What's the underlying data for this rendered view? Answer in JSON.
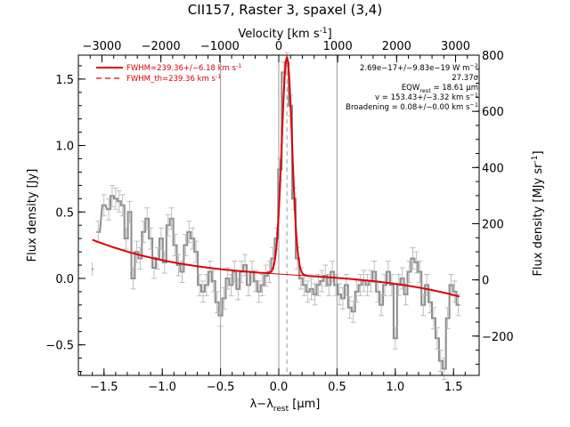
{
  "chart_data": {
    "type": "line",
    "title": "CII157, Raster 3, spaxel (3,4)",
    "xlabel": "λ−λ",
    "xlabel_sub": "rest",
    "xlabel_unit": " [μm]",
    "ylabel_left": "Flux density [Jy]",
    "ylabel_right": "Flux density [MJy sr",
    "ylabel_right_sup": "-1",
    "ylabel_right_end": "]",
    "top_axis_label": "Velocity [km s",
    "top_axis_label_sup": "-1",
    "top_axis_label_end": "]",
    "xlim": [
      -1.72,
      1.72
    ],
    "ylim": [
      -0.73,
      1.68
    ],
    "xticks": [
      -1.5,
      -1.0,
      -0.5,
      0.0,
      0.5,
      1.0,
      1.5
    ],
    "xtick_labels": [
      "−1.5",
      "−1.0",
      "−0.5",
      "0.0",
      "0.5",
      "1.0",
      "1.5"
    ],
    "yticks": [
      -0.5,
      0.0,
      0.5,
      1.0,
      1.5
    ],
    "ytick_labels": [
      "−0.5",
      "0.0",
      "0.5",
      "1.0",
      "1.5"
    ],
    "top_xlim": [
      -3400,
      3400
    ],
    "top_ticks": [
      -3000,
      -2000,
      -1000,
      0,
      1000,
      2000,
      3000
    ],
    "top_tick_labels": [
      "−3000",
      "−2000",
      "−1000",
      "0",
      "1000",
      "2000",
      "3000"
    ],
    "right_ylim": [
      -340,
      800
    ],
    "right_ticks": [
      -200,
      0,
      200,
      400,
      600,
      800
    ],
    "right_tick_labels": [
      "−200",
      "0",
      "200",
      "400",
      "600",
      "800"
    ],
    "vlines_solid": [
      -0.5,
      0.0,
      0.5
    ],
    "vline_dashed": 0.07,
    "colors": {
      "data": "#8c8c8c",
      "fit": "#e00000",
      "axes": "#000000",
      "vline": "#999999"
    },
    "legend": [
      {
        "label": "FWHM=239.36+/−6.18 km s",
        "sup": "-1",
        "style": "solid"
      },
      {
        "label": "FWHM_th=239.36 km s",
        "sup": "-1",
        "style": "dashed"
      }
    ],
    "annotations": [
      "2.69e−17+/−9.83e−19 W m",
      "27.37σ",
      "EQW",
      "v = 153.43+/−3.32 km s",
      "Broadening = 0.08+/−0.00 km s"
    ],
    "annotation_parts": {
      "flux_sup": "−2",
      "eqw_sub": "rest",
      "eqw_value": " = 18.61 μm",
      "v_sup": "−1",
      "broad_sup": "−1"
    },
    "series": [
      {
        "name": "data",
        "style": "step",
        "x": [
          -1.55,
          -1.5,
          -1.46,
          -1.43,
          -1.4,
          -1.37,
          -1.34,
          -1.31,
          -1.28,
          -1.25,
          -1.22,
          -1.19,
          -1.16,
          -1.13,
          -1.1,
          -1.07,
          -1.04,
          -1.01,
          -0.98,
          -0.95,
          -0.92,
          -0.89,
          -0.86,
          -0.83,
          -0.8,
          -0.77,
          -0.74,
          -0.71,
          -0.68,
          -0.65,
          -0.62,
          -0.59,
          -0.56,
          -0.53,
          -0.5,
          -0.47,
          -0.44,
          -0.41,
          -0.38,
          -0.35,
          -0.32,
          -0.29,
          -0.26,
          -0.23,
          -0.2,
          -0.17,
          -0.14,
          -0.11,
          -0.08,
          -0.05,
          -0.02,
          0.01,
          0.04,
          0.07,
          0.1,
          0.13,
          0.16,
          0.19,
          0.22,
          0.25,
          0.28,
          0.31,
          0.34,
          0.37,
          0.4,
          0.43,
          0.46,
          0.49,
          0.52,
          0.55,
          0.58,
          0.61,
          0.64,
          0.67,
          0.7,
          0.73,
          0.76,
          0.79,
          0.82,
          0.85,
          0.88,
          0.91,
          0.94,
          0.97,
          1.0,
          1.03,
          1.06,
          1.09,
          1.12,
          1.15,
          1.18,
          1.21,
          1.24,
          1.27,
          1.3,
          1.33,
          1.36,
          1.39,
          1.42,
          1.45,
          1.48,
          1.51,
          1.54
        ],
        "y": [
          0.35,
          0.55,
          0.52,
          0.62,
          0.6,
          0.58,
          0.55,
          0.3,
          0.5,
          0.0,
          0.2,
          0.15,
          0.35,
          0.45,
          0.3,
          0.08,
          0.15,
          0.3,
          0.12,
          0.4,
          0.45,
          0.25,
          0.1,
          0.05,
          0.25,
          0.35,
          0.3,
          0.2,
          -0.05,
          -0.1,
          -0.05,
          0.05,
          -0.02,
          -0.18,
          -0.28,
          -0.15,
          0.0,
          -0.05,
          0.05,
          -0.08,
          0.05,
          0.1,
          -0.05,
          0.05,
          -0.02,
          -0.1,
          -0.05,
          0.02,
          0.05,
          0.15,
          0.3,
          0.82,
          1.55,
          1.62,
          1.3,
          0.6,
          0.15,
          0.0,
          -0.05,
          -0.1,
          -0.08,
          -0.12,
          -0.05,
          -0.02,
          0.02,
          -0.05,
          0.05,
          -0.05,
          -0.12,
          -0.15,
          -0.05,
          -0.22,
          -0.25,
          -0.1,
          -0.05,
          -0.02,
          -0.05,
          -0.02,
          0.05,
          -0.1,
          -0.2,
          -0.05,
          0.05,
          -0.05,
          -0.45,
          -0.05,
          0.0,
          -0.12,
          0.05,
          0.15,
          0.12,
          0.05,
          -0.2,
          -0.05,
          -0.18,
          -0.3,
          -0.45,
          -0.62,
          -0.68,
          -0.3,
          -0.05,
          -0.1,
          -0.2
        ],
        "err": [
          0.08,
          0.08,
          0.08,
          0.08,
          0.08,
          0.08,
          0.08,
          0.08,
          0.08,
          0.08,
          0.08,
          0.08,
          0.08,
          0.08,
          0.08,
          0.08,
          0.08,
          0.08,
          0.08,
          0.08,
          0.08,
          0.08,
          0.08,
          0.08,
          0.08,
          0.08,
          0.08,
          0.08,
          0.08,
          0.08,
          0.08,
          0.08,
          0.08,
          0.08,
          0.08,
          0.08,
          0.08,
          0.08,
          0.08,
          0.08,
          0.08,
          0.08,
          0.08,
          0.08,
          0.08,
          0.08,
          0.08,
          0.08,
          0.08,
          0.08,
          0.08,
          0.08,
          0.08,
          0.08,
          0.08,
          0.08,
          0.08,
          0.08,
          0.08,
          0.08,
          0.08,
          0.08,
          0.08,
          0.08,
          0.08,
          0.08,
          0.08,
          0.08,
          0.08,
          0.08,
          0.08,
          0.08,
          0.08,
          0.08,
          0.08,
          0.08,
          0.08,
          0.08,
          0.08,
          0.08,
          0.08,
          0.08,
          0.08,
          0.08,
          0.08,
          0.08,
          0.08,
          0.08,
          0.08,
          0.08,
          0.08,
          0.08,
          0.08,
          0.08,
          0.08,
          0.08,
          0.08,
          0.08,
          0.08,
          0.08,
          0.08,
          0.08,
          0.08
        ]
      },
      {
        "name": "FWHM=239.36+/−6.18 km s",
        "style": "fit",
        "model": {
          "x0": 0.07,
          "amp": 1.64,
          "sigma": 0.044,
          "baseline": [
            0.033,
            -0.058,
            0.015,
            -0.031
          ]
        }
      }
    ],
    "extra_points": [
      {
        "x": -1.6,
        "y": 0.07,
        "err": 0.05
      }
    ]
  }
}
